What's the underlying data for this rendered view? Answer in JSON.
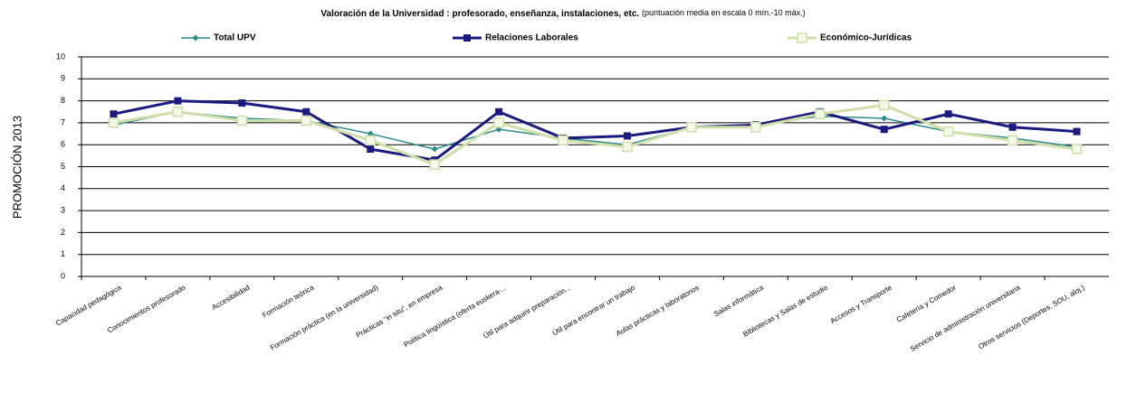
{
  "chart_data": {
    "type": "line",
    "title": "Valoración de la Universidad : profesorado, enseñanza, instalaciones, etc.",
    "subtitle": "(puntuación media en escala 0 mín.-10 máx.)",
    "y_label": "PROMOCIÓN 2013",
    "categories": [
      "Capacidad pedagógica",
      "Conocimientos profesorado",
      "Accesibilidad",
      "Formación teórica",
      "Formación práctica (en la universidad)",
      "Prácticas \"in situ\", en empresa",
      "Política lingüística (oferta euskera-...",
      "Útil para adquirir preparación...",
      "Útil para encontrar un trabajo",
      "Aulas prácticas y laboratorios",
      "Salas informática",
      "Bibliotecas y Salas de estudio",
      "Accesos y Transporte",
      "Cafetería y Comedor",
      "Servicio de administración universitaria",
      "Otros servicios (Deportes, SOU, aloj.)"
    ],
    "series": [
      {
        "name": "Total UPV",
        "color": "#2a8c8c",
        "marker": "diamond",
        "values": [
          6.9,
          7.5,
          7.2,
          7.1,
          6.5,
          5.8,
          6.7,
          6.3,
          6.0,
          6.8,
          6.9,
          7.3,
          7.2,
          6.6,
          6.3,
          5.9
        ]
      },
      {
        "name": "Relaciones Laborales",
        "color": "#1a1a80",
        "marker": "square",
        "values": [
          7.4,
          8.0,
          7.9,
          7.5,
          5.8,
          5.3,
          7.5,
          6.3,
          6.4,
          6.8,
          6.9,
          7.5,
          6.7,
          7.4,
          6.8,
          6.6
        ]
      },
      {
        "name": "Económico-Jurídicas",
        "color": "#cfdfa8",
        "marker": "square-open",
        "values": [
          7.0,
          7.5,
          7.1,
          7.1,
          6.2,
          5.1,
          7.0,
          6.2,
          5.9,
          6.8,
          6.8,
          7.4,
          7.8,
          6.6,
          6.2,
          5.8
        ]
      }
    ],
    "ylim": [
      0,
      10
    ],
    "yticks": [
      0,
      1,
      2,
      3,
      4,
      5,
      6,
      7,
      8,
      9,
      10
    ],
    "grid": true
  }
}
